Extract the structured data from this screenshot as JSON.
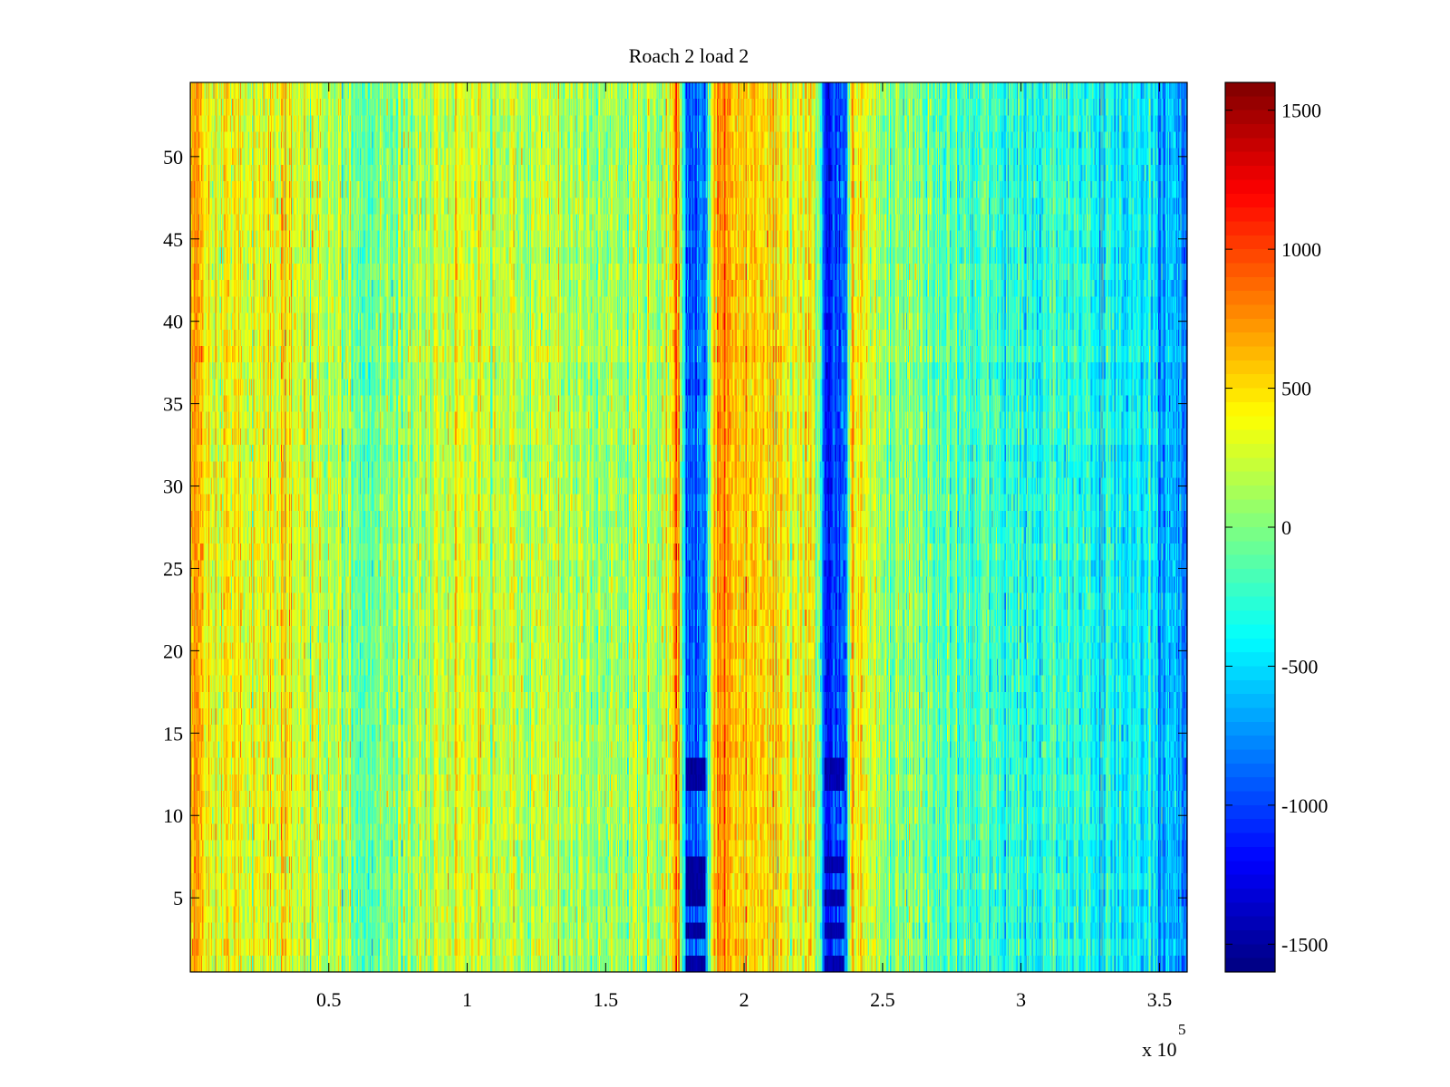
{
  "chart_data": {
    "type": "heatmap",
    "title": "Roach 2 load 2",
    "xlabel": "",
    "ylabel": "",
    "x_multiplier_label": "x 10",
    "x_multiplier_exponent": "5",
    "xlim": [
      0,
      3.6
    ],
    "ylim": [
      0.5,
      54.5
    ],
    "x_ticks": [
      0.5,
      1,
      1.5,
      2,
      2.5,
      3,
      3.5
    ],
    "x_tick_labels": [
      "0.5",
      "1",
      "1.5",
      "2",
      "2.5",
      "3",
      "3.5"
    ],
    "y_ticks": [
      5,
      10,
      15,
      20,
      25,
      30,
      35,
      40,
      45,
      50
    ],
    "y_tick_labels": [
      "5",
      "10",
      "15",
      "20",
      "25",
      "30",
      "35",
      "40",
      "45",
      "50"
    ],
    "rows": 54,
    "colormap": "jet",
    "clim": [
      -1600,
      1600
    ],
    "colorbar_ticks": [
      1500,
      1000,
      500,
      0,
      -500,
      -1000,
      -1500
    ],
    "colorbar_tick_labels": [
      "1500",
      "1000",
      "500",
      "0",
      "-500",
      "-1000",
      "-1500"
    ],
    "column_profile": [
      {
        "x": 0.0,
        "value": 700
      },
      {
        "x": 0.05,
        "value": 450
      },
      {
        "x": 0.3,
        "value": 350
      },
      {
        "x": 0.55,
        "value": 150
      },
      {
        "x": 0.65,
        "value": -100
      },
      {
        "x": 0.75,
        "value": 100
      },
      {
        "x": 1.0,
        "value": 250
      },
      {
        "x": 1.3,
        "value": 200
      },
      {
        "x": 1.55,
        "value": 50
      },
      {
        "x": 1.72,
        "value": 150
      },
      {
        "x": 1.76,
        "value": 900
      },
      {
        "x": 1.79,
        "value": -900
      },
      {
        "x": 1.86,
        "value": -900
      },
      {
        "x": 1.89,
        "value": 700
      },
      {
        "x": 2.0,
        "value": 600
      },
      {
        "x": 2.2,
        "value": 300
      },
      {
        "x": 2.27,
        "value": 200
      },
      {
        "x": 2.29,
        "value": -1000
      },
      {
        "x": 2.36,
        "value": -1000
      },
      {
        "x": 2.39,
        "value": 500
      },
      {
        "x": 2.5,
        "value": 100
      },
      {
        "x": 2.8,
        "value": -150
      },
      {
        "x": 3.2,
        "value": -300
      },
      {
        "x": 3.4,
        "value": -400
      },
      {
        "x": 3.55,
        "value": -650
      },
      {
        "x": 3.6,
        "value": -900
      }
    ],
    "dark_bands": [
      {
        "x_range": [
          1.79,
          1.86
        ],
        "rows": [
          1,
          3,
          5,
          6,
          7,
          12,
          13
        ],
        "value": -1500
      },
      {
        "x_range": [
          2.29,
          2.36
        ],
        "rows": [
          1,
          3,
          5,
          7,
          12,
          13
        ],
        "value": -1450
      }
    ]
  }
}
